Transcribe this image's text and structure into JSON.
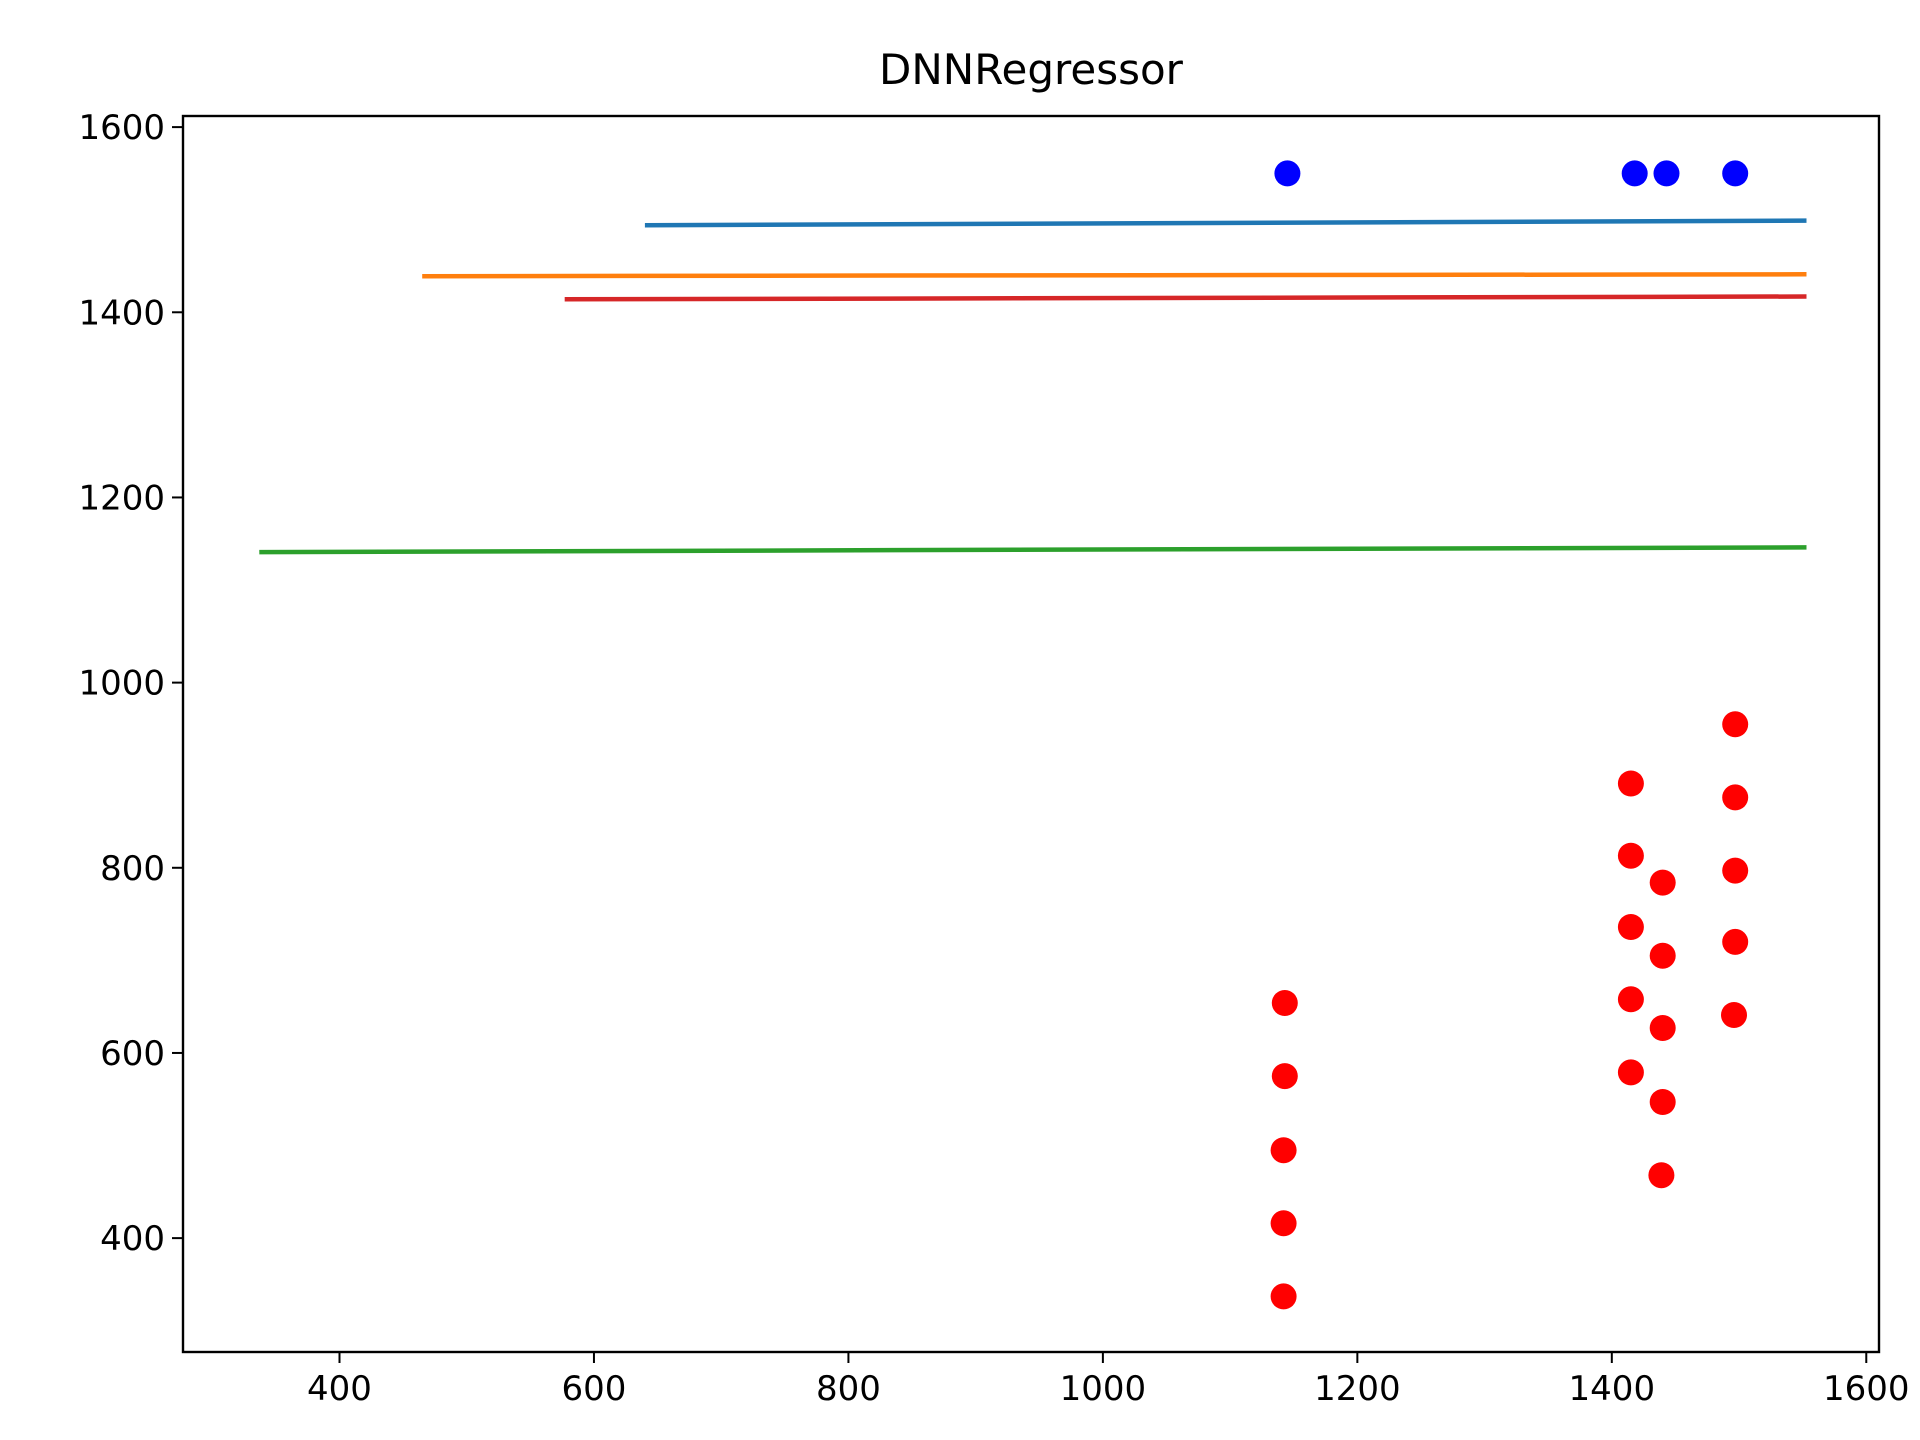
{
  "chart_data": {
    "type": "scatter",
    "title": "DNNRegressor",
    "xlabel": "",
    "ylabel": "",
    "xlim": [
      277,
      1610
    ],
    "ylim": [
      277,
      1612
    ],
    "x_ticks": [
      400,
      600,
      800,
      1000,
      1200,
      1400,
      1600
    ],
    "y_ticks": [
      400,
      600,
      800,
      1000,
      1200,
      1400,
      1600
    ],
    "grid": false,
    "legend": "none",
    "series": [
      {
        "kind": "line",
        "color": "#1f77b4",
        "points": [
          [
            640,
            1494
          ],
          [
            1553,
            1499
          ]
        ]
      },
      {
        "kind": "line",
        "color": "#ff7f0e",
        "points": [
          [
            465,
            1439
          ],
          [
            1553,
            1441
          ]
        ]
      },
      {
        "kind": "line",
        "color": "#d62728",
        "points": [
          [
            577,
            1414
          ],
          [
            1553,
            1417
          ]
        ]
      },
      {
        "kind": "line",
        "color": "#2ca02c",
        "points": [
          [
            337,
            1141
          ],
          [
            1553,
            1146
          ]
        ]
      },
      {
        "kind": "scatter",
        "color": "#0000ff",
        "points": [
          [
            1145,
            1550
          ],
          [
            1418,
            1550
          ],
          [
            1443,
            1550
          ],
          [
            1497,
            1550
          ]
        ]
      },
      {
        "kind": "scatter",
        "color": "#ff0000",
        "points": [
          [
            1143,
            654
          ],
          [
            1143,
            575
          ],
          [
            1142,
            495
          ],
          [
            1142,
            416
          ],
          [
            1142,
            337
          ],
          [
            1415,
            891
          ],
          [
            1415,
            813
          ],
          [
            1415,
            736
          ],
          [
            1415,
            658
          ],
          [
            1415,
            579
          ],
          [
            1440,
            784
          ],
          [
            1440,
            705
          ],
          [
            1440,
            627
          ],
          [
            1440,
            547
          ],
          [
            1439,
            468
          ],
          [
            1497,
            955
          ],
          [
            1497,
            876
          ],
          [
            1497,
            797
          ],
          [
            1497,
            720
          ],
          [
            1496,
            641
          ]
        ]
      }
    ]
  }
}
